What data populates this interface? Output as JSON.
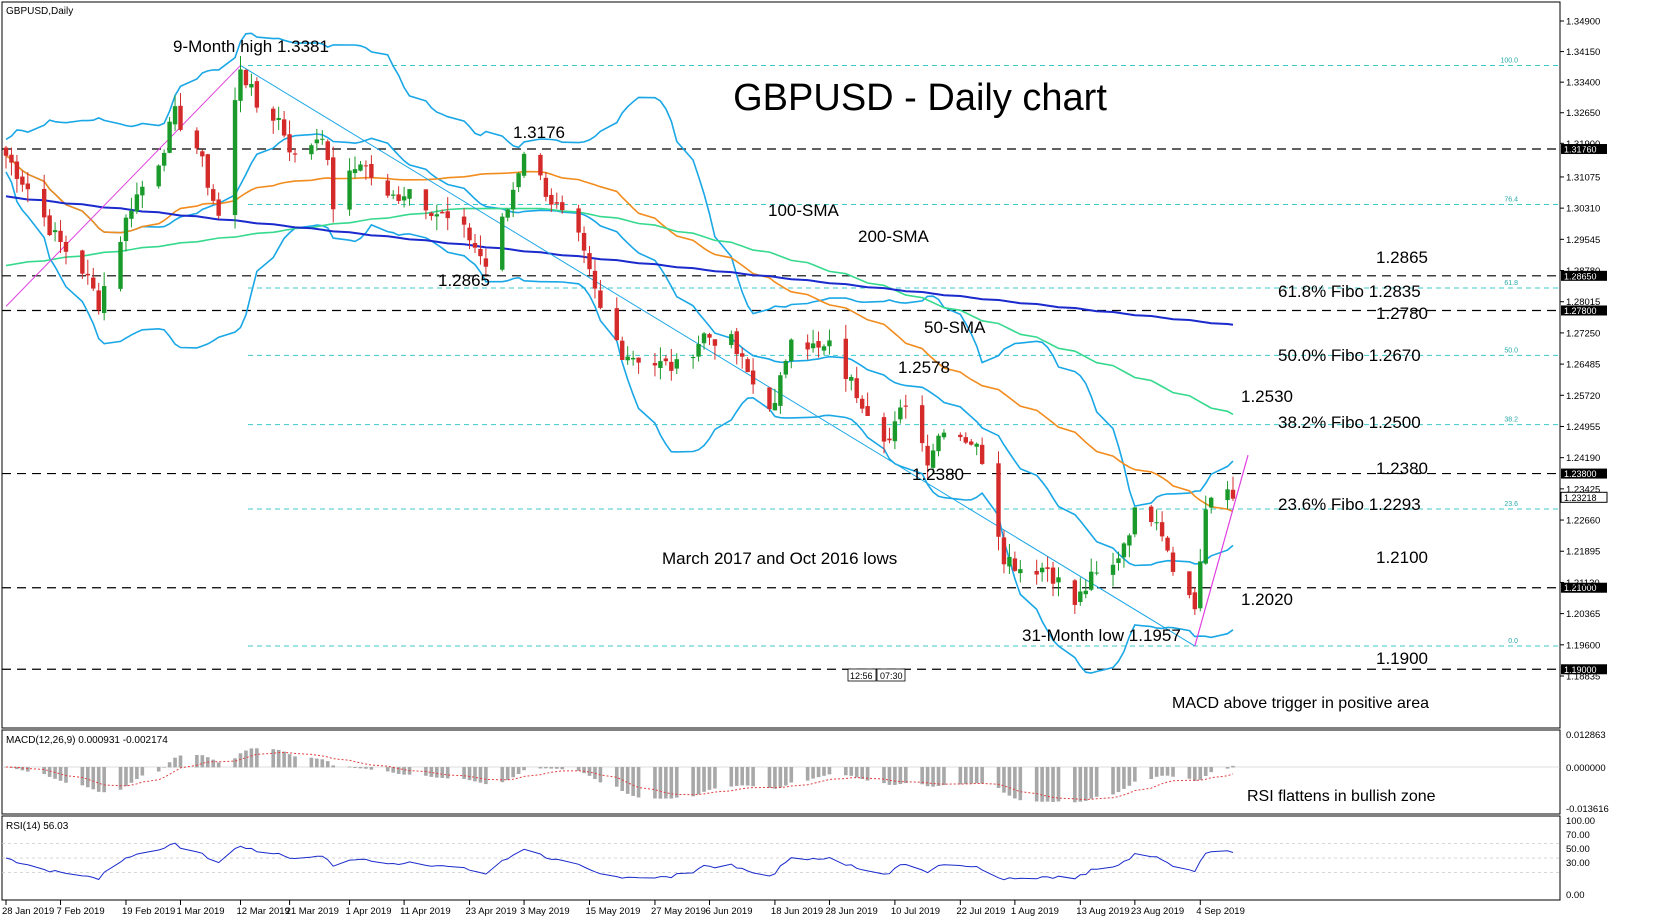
{
  "header": {
    "symbol_label": "GBPUSD,Daily"
  },
  "main_title": "GBPUSD - Daily chart",
  "colors": {
    "bull": "#1a9a2a",
    "bear": "#d42a2a",
    "bollinger": "#1aa7e6",
    "sma50": "#f28c1e",
    "sma100": "#36d98e",
    "sma200": "#1a2acc",
    "fibo": "#3cc9c9",
    "trend_pink": "#e040e0",
    "macd_signal": "#e04040"
  },
  "chart_data": [
    {
      "type": "candlestick",
      "title": "GBPUSD - Daily chart",
      "ylim": [
        1.183,
        1.3485
      ],
      "y_ticks": [
        "1.34900",
        "1.34150",
        "1.33400",
        "1.32650",
        "1.31900",
        "1.31075",
        "1.30310",
        "1.29545",
        "1.28780",
        "1.28015",
        "1.27250",
        "1.26485",
        "1.25720",
        "1.24955",
        "1.24190",
        "1.23425",
        "1.22660",
        "1.21895",
        "1.21130",
        "1.20365",
        "1.19600",
        "1.18835"
      ],
      "x_labels": [
        "28 Jan 2019",
        "7 Feb 2019",
        "19 Feb 2019",
        "1 Mar 2019",
        "12 Mar 2019",
        "21 Mar 2019",
        "1 Apr 2019",
        "11 Apr 2019",
        "23 Apr 2019",
        "3 May 2019",
        "15 May 2019",
        "27 May 2019",
        "6 Jun 2019",
        "18 Jun 2019",
        "28 Jun 2019",
        "10 Jul 2019",
        "22 Jul 2019",
        "1 Aug 2019",
        "13 Aug 2019",
        "23 Aug 2019",
        "4 Sep 2019"
      ],
      "series_labels": [
        "100-SMA",
        "200-SMA",
        "50-SMA"
      ],
      "key_points": [
        {
          "label": "9-Month high 1.3381",
          "value": 1.3381
        },
        {
          "label": "1.3176",
          "value": 1.3176
        },
        {
          "label": "1.2865",
          "value": 1.2865
        },
        {
          "label": "1.2578",
          "value": 1.2578
        },
        {
          "label": "1.2380",
          "value": 1.238
        },
        {
          "label": "March 2017 and Oct 2016 lows",
          "value": 1.21
        },
        {
          "label": "31-Month low 1.1957",
          "value": 1.1957
        }
      ],
      "levels": [
        {
          "value": 1.3176,
          "tag": "1.31760"
        },
        {
          "value": 1.2865,
          "tag": "1.28650",
          "label": "1.2865"
        },
        {
          "value": 1.278,
          "tag": "1.27800",
          "label": "1.2780"
        },
        {
          "value": 1.238,
          "tag": "1.23800",
          "label": "1.2380"
        },
        {
          "value": 1.21,
          "tag": "1.21000",
          "label": "1.2100"
        },
        {
          "value": 1.19,
          "tag": "1.19000",
          "label": "1.1900"
        }
      ],
      "fibo_levels": [
        {
          "value": 1.3381,
          "tag": "100.0"
        },
        {
          "value": 1.304,
          "tag": "76.4"
        },
        {
          "value": 1.2835,
          "tag": "61.8",
          "label": "61.8% Fibo 1.2835"
        },
        {
          "value": 1.267,
          "tag": "50.0",
          "label": "50.0% Fibo 1.2670"
        },
        {
          "value": 1.25,
          "tag": "38.2",
          "label": "38.2% Fibo 1.2500"
        },
        {
          "value": 1.2293,
          "tag": "23.6",
          "label": "23.6% Fibo 1.2293"
        },
        {
          "value": 1.1957,
          "tag": "0.0"
        }
      ],
      "price_labels": [
        {
          "text": "1.2530",
          "value": 1.253
        },
        {
          "text": "1.2020",
          "value": 1.202
        }
      ],
      "current_price_tag": "1.23218",
      "current_price": 1.23218,
      "time_marks": [
        "12:56",
        "07:30"
      ]
    },
    {
      "type": "histogram",
      "title": "MACD(12,26,9) 0.000931 -0.002174",
      "y_ticks": [
        "0.012863",
        "0.000000",
        "-0.013616"
      ],
      "annotation": "MACD above trigger in positive area"
    },
    {
      "type": "line",
      "title": "RSI(14) 56.03",
      "y_ticks": [
        "100.00",
        "70.00",
        "50.00",
        "30.00",
        "0.00"
      ],
      "annotation": "RSI flattens in bullish zone"
    }
  ]
}
